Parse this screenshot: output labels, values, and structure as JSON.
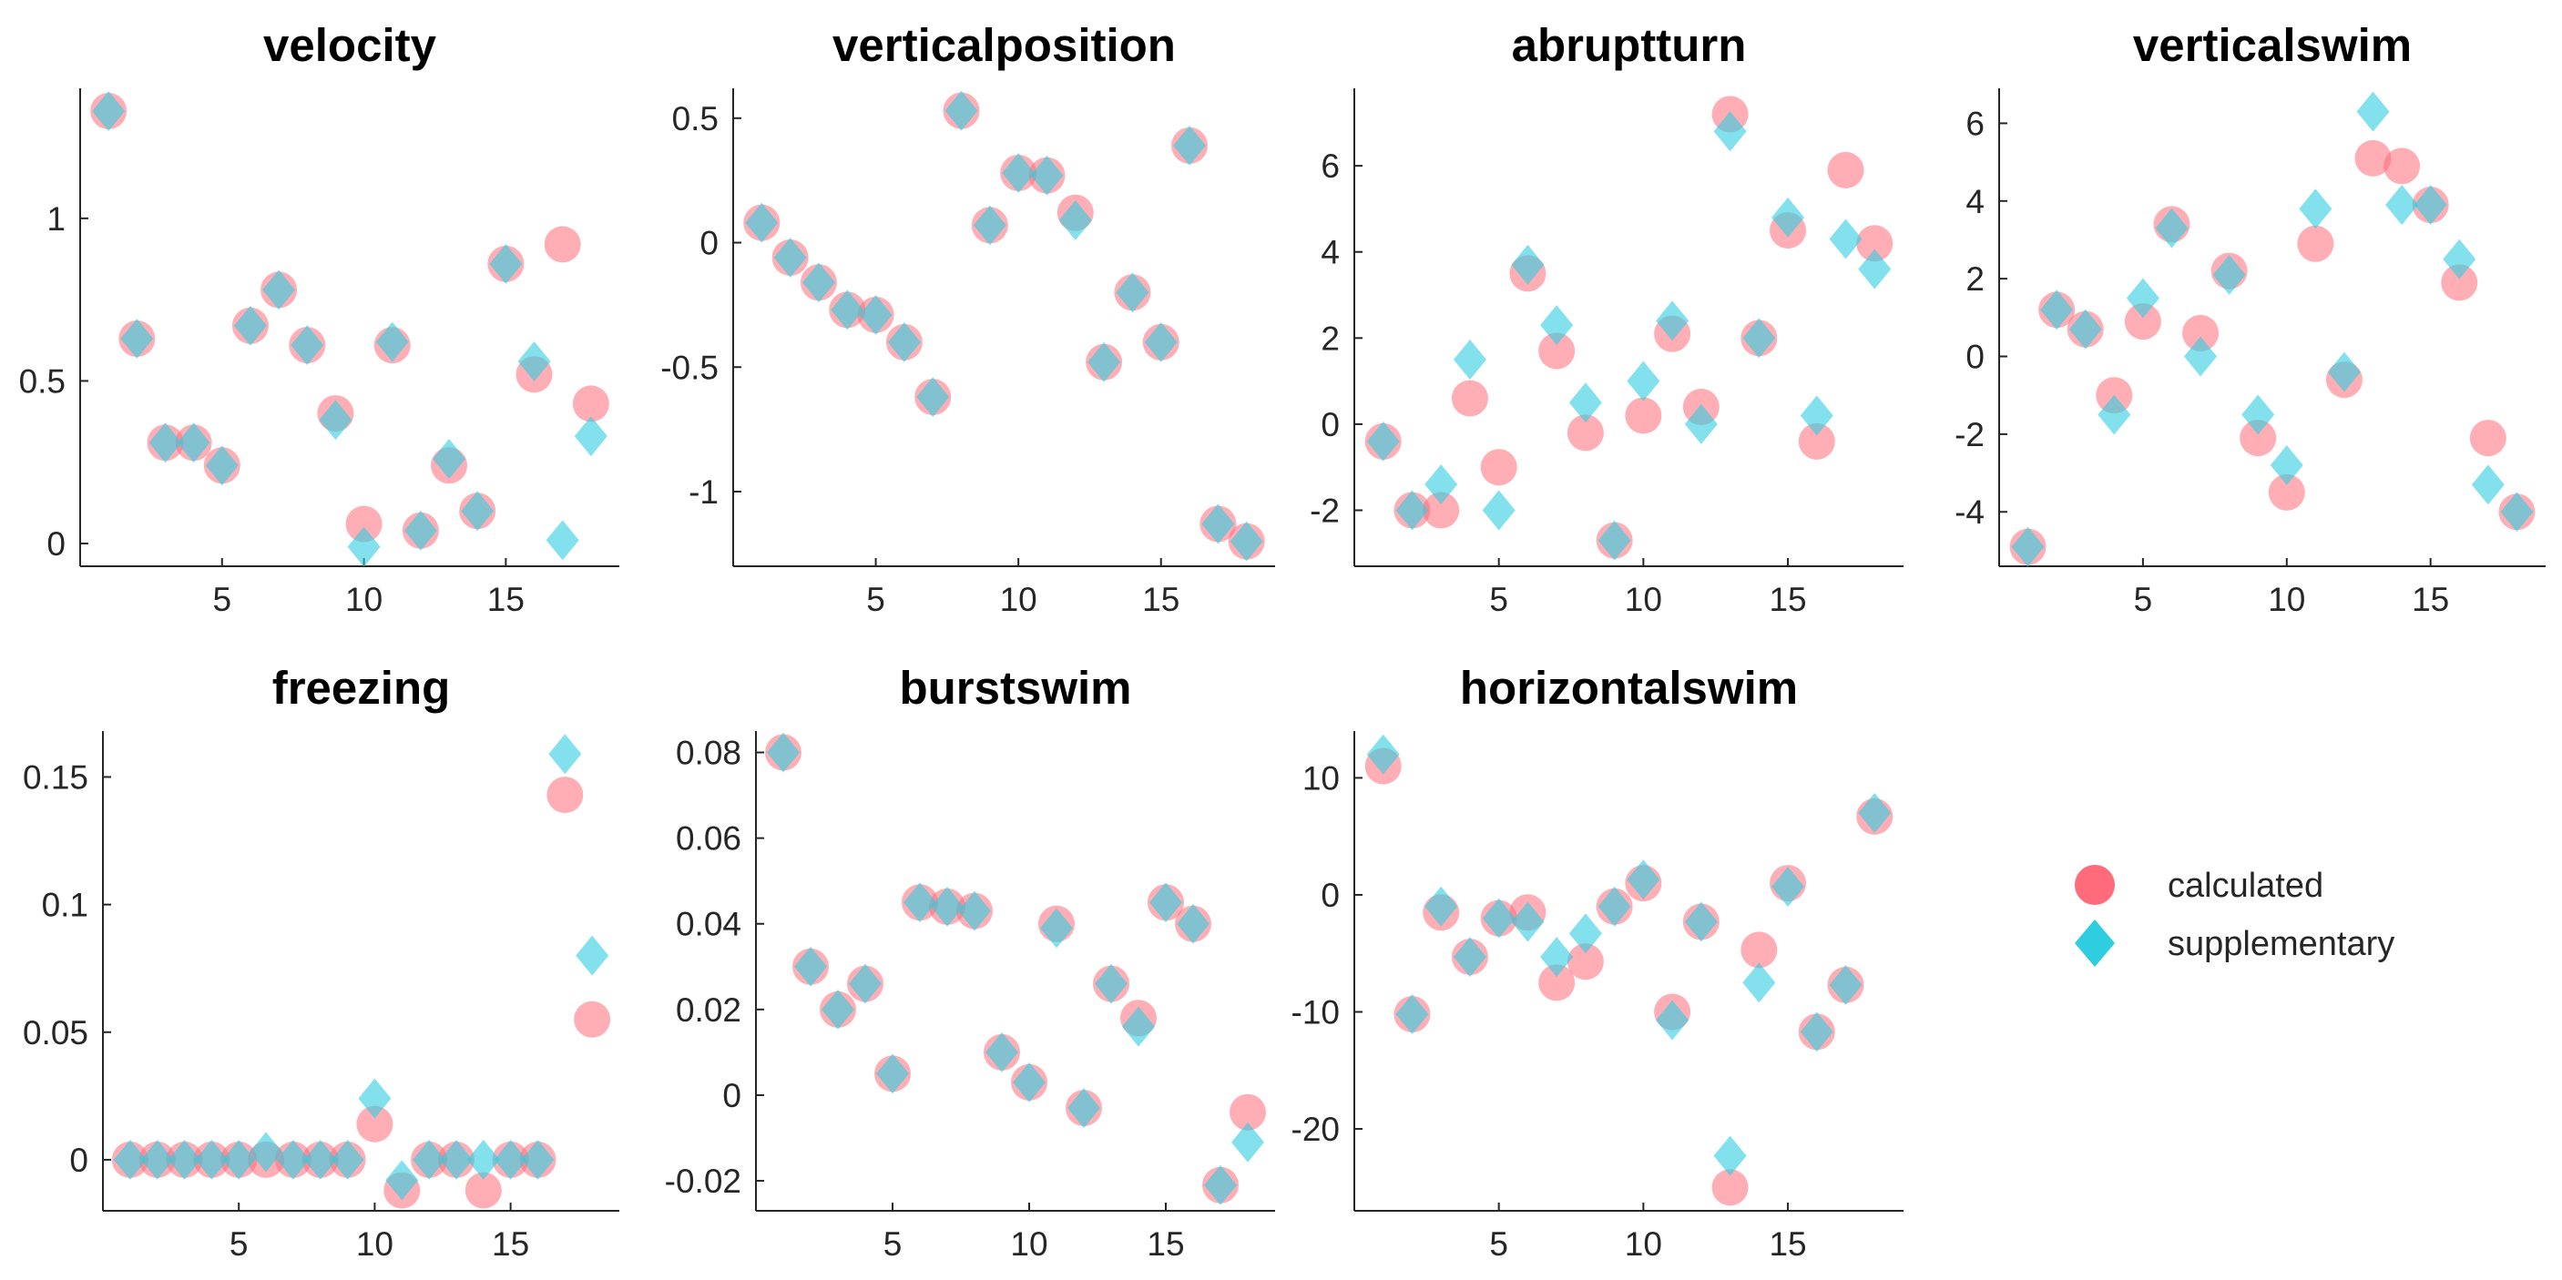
{
  "colors": {
    "calculated": "#ff6b7a",
    "supplementary": "#2ecde0"
  },
  "legend": {
    "entries": [
      {
        "name": "calculated",
        "marker": "circle"
      },
      {
        "name": "supplementary",
        "marker": "diamond"
      }
    ]
  },
  "chart_data": [
    {
      "type": "scatter",
      "title": "velocity",
      "xlim": [
        0,
        19
      ],
      "ylim": [
        -0.07,
        1.4
      ],
      "xticks": [
        5,
        10,
        15
      ],
      "yticks": [
        0,
        0.5,
        1
      ],
      "ytick_labels": [
        "0",
        "0.5",
        "1"
      ],
      "x": [
        1,
        2,
        3,
        4,
        5,
        6,
        7,
        8,
        9,
        10,
        11,
        12,
        13,
        14,
        15,
        16,
        17,
        18
      ],
      "series": [
        {
          "name": "calculated",
          "values": [
            1.33,
            0.63,
            0.31,
            0.31,
            0.24,
            0.67,
            0.78,
            0.61,
            0.4,
            0.06,
            0.61,
            0.04,
            0.24,
            0.1,
            0.86,
            0.52,
            0.92,
            0.43
          ]
        },
        {
          "name": "supplementary",
          "values": [
            1.33,
            0.63,
            0.31,
            0.31,
            0.24,
            0.67,
            0.78,
            0.61,
            0.38,
            -0.01,
            0.62,
            0.04,
            0.26,
            0.1,
            0.86,
            0.56,
            0.01,
            0.33
          ]
        }
      ]
    },
    {
      "type": "scatter",
      "title": "verticalposition",
      "xlim": [
        0,
        19
      ],
      "ylim": [
        -1.3,
        0.62
      ],
      "xticks": [
        5,
        10,
        15
      ],
      "yticks": [
        0.5,
        0,
        -0.5,
        -1
      ],
      "ytick_labels": [
        "0.5",
        "0",
        "-0.5",
        "-1"
      ],
      "x": [
        1,
        2,
        3,
        4,
        5,
        6,
        7,
        8,
        9,
        10,
        11,
        12,
        13,
        14,
        15,
        16,
        17,
        18
      ],
      "series": [
        {
          "name": "calculated",
          "values": [
            0.08,
            -0.06,
            -0.16,
            -0.27,
            -0.29,
            -0.4,
            -0.62,
            0.53,
            0.07,
            0.28,
            0.27,
            0.12,
            -0.48,
            -0.2,
            -0.4,
            0.39,
            -1.13,
            -1.2
          ]
        },
        {
          "name": "supplementary",
          "values": [
            0.08,
            -0.06,
            -0.16,
            -0.27,
            -0.29,
            -0.4,
            -0.62,
            0.53,
            0.07,
            0.28,
            0.27,
            0.09,
            -0.48,
            -0.2,
            -0.4,
            0.39,
            -1.13,
            -1.2
          ]
        }
      ]
    },
    {
      "type": "scatter",
      "title": "abruptturn",
      "xlim": [
        0,
        19
      ],
      "ylim": [
        -3.3,
        7.8
      ],
      "xticks": [
        5,
        10,
        15
      ],
      "yticks": [
        6,
        4,
        2,
        0,
        -2
      ],
      "ytick_labels": [
        "6",
        "4",
        "2",
        "0",
        "-2"
      ],
      "x": [
        1,
        2,
        3,
        4,
        5,
        6,
        7,
        8,
        9,
        10,
        11,
        12,
        13,
        14,
        15,
        16,
        17,
        18
      ],
      "series": [
        {
          "name": "calculated",
          "values": [
            -0.4,
            -2.0,
            -2.0,
            0.6,
            -1.0,
            3.5,
            1.7,
            -0.2,
            -2.7,
            0.2,
            2.1,
            0.4,
            7.2,
            2.0,
            4.5,
            -0.4,
            5.9,
            4.2
          ]
        },
        {
          "name": "supplementary",
          "values": [
            -0.4,
            -2.0,
            -1.4,
            1.5,
            -2.0,
            3.7,
            2.3,
            0.5,
            -2.7,
            1.0,
            2.4,
            0.0,
            6.8,
            2.0,
            4.8,
            0.2,
            4.3,
            3.6
          ]
        }
      ]
    },
    {
      "type": "scatter",
      "title": "verticalswim",
      "xlim": [
        0,
        19
      ],
      "ylim": [
        -5.4,
        6.9
      ],
      "xticks": [
        5,
        10,
        15
      ],
      "yticks": [
        6,
        4,
        2,
        0,
        -2,
        -4
      ],
      "ytick_labels": [
        "6",
        "4",
        "2",
        "0",
        "-2",
        "-4"
      ],
      "x": [
        1,
        2,
        3,
        4,
        5,
        6,
        7,
        8,
        9,
        10,
        11,
        12,
        13,
        14,
        15,
        16,
        17,
        18
      ],
      "series": [
        {
          "name": "calculated",
          "values": [
            -4.9,
            1.2,
            0.7,
            -1.0,
            0.9,
            3.4,
            0.6,
            2.2,
            -2.1,
            -3.5,
            2.9,
            -0.6,
            5.1,
            4.9,
            3.9,
            1.9,
            -2.1,
            -4.0
          ]
        },
        {
          "name": "supplementary",
          "values": [
            -4.9,
            1.2,
            0.7,
            -1.5,
            1.5,
            3.3,
            0.0,
            2.1,
            -1.5,
            -2.8,
            3.8,
            -0.4,
            6.3,
            3.9,
            3.9,
            2.5,
            -3.3,
            -4.0
          ]
        }
      ]
    },
    {
      "type": "scatter",
      "title": "freezing",
      "xlim": [
        0,
        19
      ],
      "ylim": [
        -0.02,
        0.168
      ],
      "xticks": [
        5,
        10,
        15
      ],
      "yticks": [
        0.15,
        0.1,
        0.05,
        0
      ],
      "ytick_labels": [
        "0.15",
        "0.1",
        "0.05",
        "0"
      ],
      "x": [
        1,
        2,
        3,
        4,
        5,
        6,
        7,
        8,
        9,
        10,
        11,
        12,
        13,
        14,
        15,
        16,
        17,
        18
      ],
      "series": [
        {
          "name": "calculated",
          "values": [
            0,
            0,
            0,
            0,
            0,
            0,
            0,
            0,
            0,
            0.014,
            -0.012,
            0,
            0,
            -0.012,
            0,
            0,
            0.143,
            0.055
          ]
        },
        {
          "name": "supplementary",
          "values": [
            0,
            0,
            0,
            0,
            0,
            0.003,
            0,
            0,
            0,
            0.024,
            -0.008,
            0,
            0,
            0,
            0,
            0,
            0.159,
            0.08
          ]
        }
      ]
    },
    {
      "type": "scatter",
      "title": "burstswim",
      "xlim": [
        0,
        19
      ],
      "ylim": [
        -0.027,
        0.085
      ],
      "xticks": [
        5,
        10,
        15
      ],
      "yticks": [
        0.08,
        0.06,
        0.04,
        0.02,
        0,
        -0.02
      ],
      "ytick_labels": [
        "0.08",
        "0.06",
        "0.04",
        "0.02",
        "0",
        "-0.02"
      ],
      "x": [
        1,
        2,
        3,
        4,
        5,
        6,
        7,
        8,
        9,
        10,
        11,
        12,
        13,
        14,
        15,
        16,
        17,
        18
      ],
      "series": [
        {
          "name": "calculated",
          "values": [
            0.08,
            0.03,
            0.02,
            0.026,
            0.005,
            0.045,
            0.044,
            0.043,
            0.01,
            0.003,
            0.04,
            -0.003,
            0.026,
            0.018,
            0.045,
            0.04,
            -0.021,
            -0.004
          ]
        },
        {
          "name": "supplementary",
          "values": [
            0.08,
            0.03,
            0.02,
            0.026,
            0.005,
            0.045,
            0.044,
            0.043,
            0.01,
            0.003,
            0.039,
            -0.003,
            0.026,
            0.016,
            0.045,
            0.04,
            -0.021,
            -0.011
          ]
        }
      ]
    },
    {
      "type": "scatter",
      "title": "horizontalswim",
      "xlim": [
        0,
        19
      ],
      "ylim": [
        -27,
        14
      ],
      "xticks": [
        5,
        10,
        15
      ],
      "yticks": [
        10,
        0,
        -10,
        -20
      ],
      "ytick_labels": [
        "10",
        "0",
        "-10",
        "-20"
      ],
      "x": [
        1,
        2,
        3,
        4,
        5,
        6,
        7,
        8,
        9,
        10,
        11,
        12,
        13,
        14,
        15,
        16,
        17,
        18
      ],
      "series": [
        {
          "name": "calculated",
          "values": [
            11,
            -10.2,
            -1.5,
            -5.3,
            -2,
            -1.5,
            -7.5,
            -5.7,
            -1,
            1,
            -10,
            -2.3,
            -25,
            -4.7,
            1,
            -11.7,
            -7.7,
            6.7
          ]
        },
        {
          "name": "supplementary",
          "values": [
            12,
            -10.2,
            -1,
            -5.3,
            -2,
            -2.3,
            -5.3,
            -3.3,
            -1,
            1.3,
            -10.7,
            -2.3,
            -22.3,
            -7.5,
            0.7,
            -11.7,
            -7.7,
            7
          ]
        }
      ]
    }
  ]
}
